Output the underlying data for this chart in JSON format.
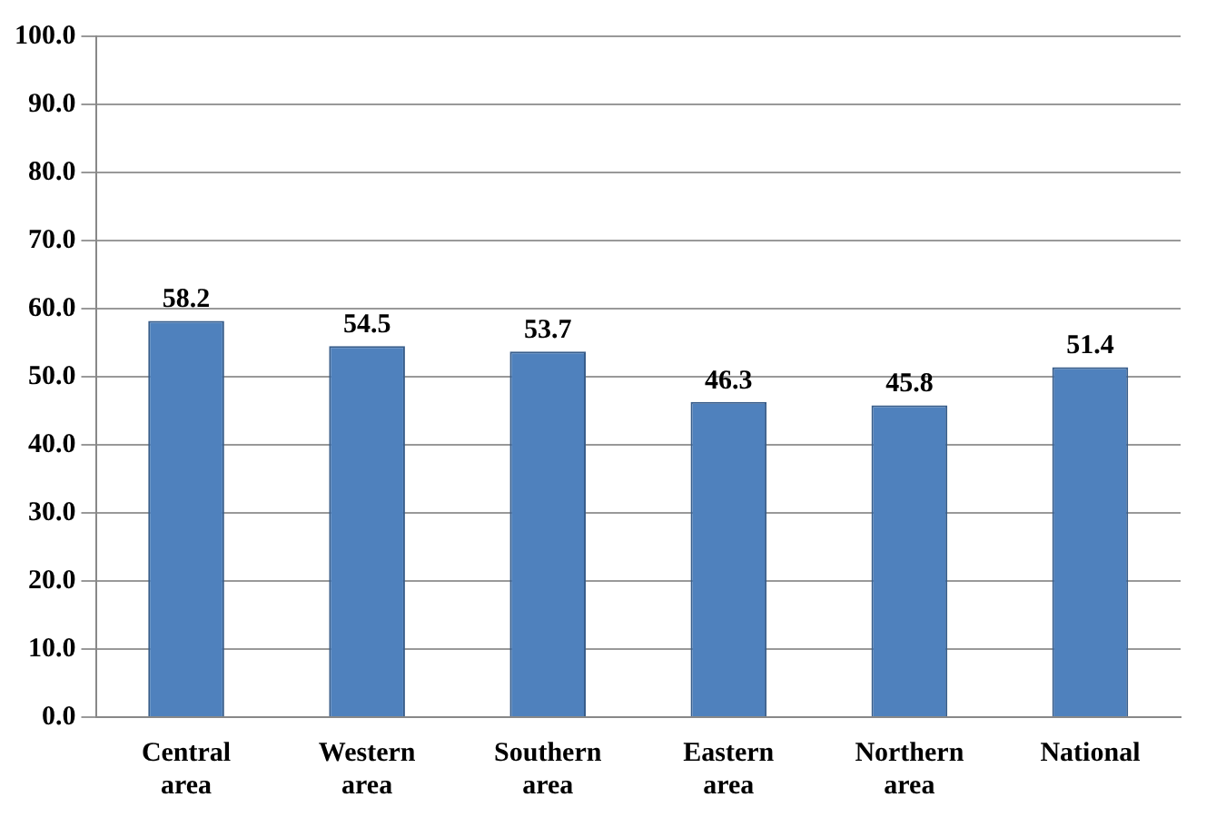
{
  "chart_data": {
    "type": "bar",
    "categories": [
      "Central area",
      "Western area",
      "Southern area",
      "Eastern area",
      "Northern area",
      "National"
    ],
    "values": [
      58.2,
      54.5,
      53.7,
      46.3,
      45.8,
      51.4
    ],
    "color": "#4f81bd",
    "ylim": [
      0,
      100
    ],
    "yticks": [
      {
        "value": 0,
        "label": "0.0"
      },
      {
        "value": 10,
        "label": "10.0"
      },
      {
        "value": 20,
        "label": "20.0"
      },
      {
        "value": 30,
        "label": "30.0"
      },
      {
        "value": 40,
        "label": "40.0"
      },
      {
        "value": 50,
        "label": "50.0"
      },
      {
        "value": 60,
        "label": "60.0"
      },
      {
        "value": 70,
        "label": "70.0"
      },
      {
        "value": 80,
        "label": "80.0"
      },
      {
        "value": 90,
        "label": "90.0"
      },
      {
        "value": 100,
        "label": "100.0"
      }
    ],
    "grid": "y",
    "data_labels": true
  }
}
